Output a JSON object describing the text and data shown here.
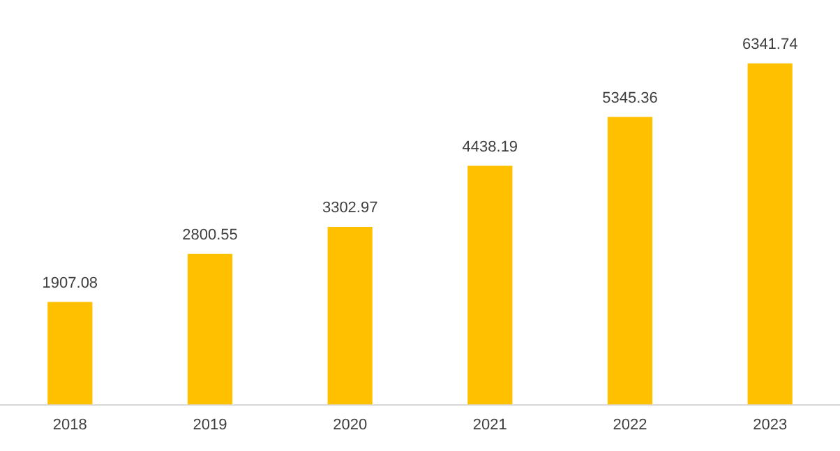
{
  "chart_data": {
    "type": "bar",
    "categories": [
      "2018",
      "2019",
      "2020",
      "2021",
      "2022",
      "2023"
    ],
    "values": [
      1907.08,
      2800.55,
      3302.97,
      4438.19,
      5345.36,
      6341.74
    ],
    "color": "#ffc000",
    "data_labels": true,
    "grid": false,
    "legend": false
  }
}
